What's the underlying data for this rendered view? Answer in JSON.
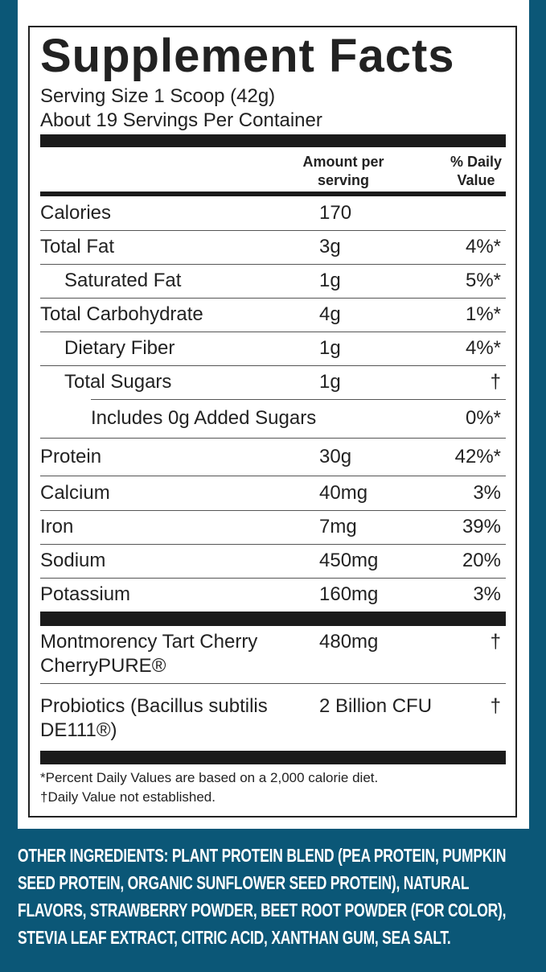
{
  "label": {
    "title": "Supplement Facts",
    "serving_size": "Serving Size 1 Scoop (42g)",
    "servings_per_container": "About 19 Servings Per Container",
    "header_amount": [
      "Amount per",
      "serving"
    ],
    "header_dv": [
      "% Daily",
      "Value"
    ],
    "rows": [
      {
        "name": "Calories",
        "amount": "170",
        "dv": ""
      },
      {
        "name": "Total Fat",
        "amount": "3g",
        "dv": "4%*"
      },
      {
        "name": "Saturated Fat",
        "amount": "1g",
        "dv": "5%*"
      },
      {
        "name": "Total Carbohydrate",
        "amount": "4g",
        "dv": "1%*"
      },
      {
        "name": "Dietary Fiber",
        "amount": "1g",
        "dv": "4%*"
      },
      {
        "name": "Total Sugars",
        "amount": "1g",
        "dv": "†"
      },
      {
        "name": "Includes 0g Added Sugars",
        "amount": "",
        "dv": "0%*"
      },
      {
        "name": "Protein",
        "amount": "30g",
        "dv": "42%*"
      },
      {
        "name": "Calcium",
        "amount": "40mg",
        "dv": "3%"
      },
      {
        "name": "Iron",
        "amount": "7mg",
        "dv": "39%"
      },
      {
        "name": "Sodium",
        "amount": "450mg",
        "dv": "20%"
      },
      {
        "name": "Potassium",
        "amount": "160mg",
        "dv": "3%"
      }
    ],
    "other_rows": [
      {
        "name": [
          "Montmorency Tart Cherry",
          "CherryPURE®"
        ],
        "amount": "480mg",
        "dv": "†"
      },
      {
        "name": [
          "Probiotics (Bacillus subtilis",
          "DE111®)"
        ],
        "amount": "2 Billion CFU",
        "dv": "†"
      }
    ],
    "footnotes": [
      "*Percent Daily Values are based on a 2,000 calorie diet.",
      "†Daily Value not established."
    ],
    "other_ingredients": "OTHER INGREDIENTS: PLANT PROTEIN BLEND (PEA PROTEIN, PUMPKIN SEED PROTEIN, ORGANIC SUNFLOWER SEED PROTEIN), NATURAL FLAVORS, STRAWBERRY POWDER, BEET ROOT POWDER (FOR COLOR), STEVIA LEAF EXTRACT, CITRIC ACID, XANTHAN GUM, SEA SALT."
  }
}
